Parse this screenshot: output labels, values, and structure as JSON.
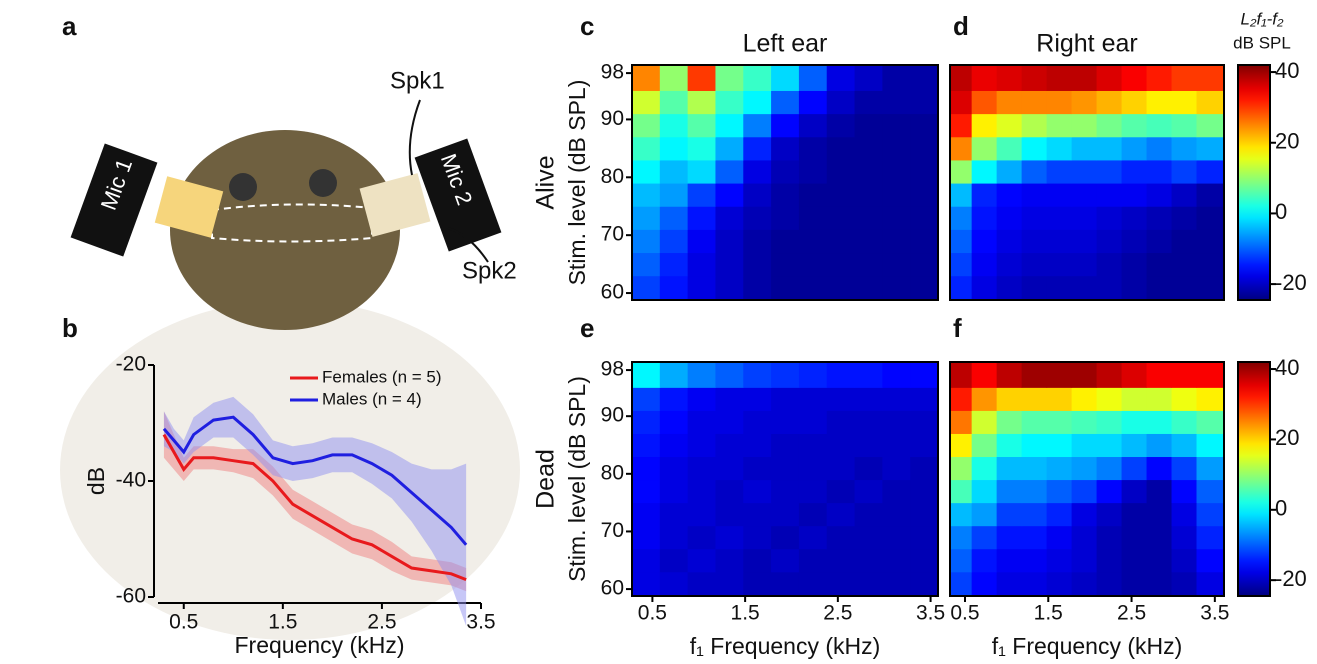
{
  "panels": [
    "a",
    "b",
    "c",
    "d",
    "e",
    "f"
  ],
  "illustration": {
    "mic1": "Mic 1",
    "mic2": "Mic 2",
    "spk1": "Spk1",
    "spk2": "Spk2"
  },
  "chart_data": [
    {
      "type": "line",
      "x_label": "Frequency (kHz)",
      "y_label": "dB",
      "x": [
        0.3,
        0.4,
        0.5,
        0.6,
        0.8,
        1.0,
        1.2,
        1.4,
        1.6,
        1.8,
        2.0,
        2.2,
        2.4,
        2.6,
        2.8,
        3.0,
        3.2,
        3.35
      ],
      "series": [
        {
          "name": "Females (n = 5)",
          "color": "#e8191c",
          "band_color": "#f08080",
          "values": [
            -32,
            -35,
            -38,
            -36,
            -36,
            -36.5,
            -37,
            -40,
            -44,
            -46,
            -48,
            -50,
            -51,
            -53,
            -55,
            -55.5,
            -56,
            -57
          ],
          "errors": [
            4,
            3,
            2,
            2,
            2,
            2,
            2.5,
            2.5,
            2.5,
            2.5,
            2.5,
            2.5,
            2.5,
            2.5,
            2,
            2,
            2,
            2
          ]
        },
        {
          "name": "Males (n = 4)",
          "color": "#1f1fe0",
          "band_color": "#8f8ff0",
          "values": [
            -31,
            -33,
            -35,
            -32,
            -29.5,
            -29,
            -32,
            -36,
            -37,
            -36.5,
            -35.5,
            -35.5,
            -37,
            -39,
            -42,
            -45,
            -48,
            -51
          ],
          "errors": [
            3,
            2,
            2,
            3,
            3,
            3.5,
            3.5,
            3,
            3,
            3,
            3,
            3,
            3.5,
            4,
            5,
            7,
            10,
            14
          ]
        }
      ],
      "xlim": [
        0.24,
        3.5
      ],
      "ylim": [
        -60,
        -20
      ],
      "xticks": [
        0.5,
        1.5,
        2.5,
        3.5
      ],
      "yticks": [
        -60,
        -40,
        -20
      ]
    },
    {
      "type": "heatmap",
      "title": "Left ear",
      "row_label": "Alive",
      "y_label": "Stim. level (dB SPL)",
      "colormap": "jet",
      "clim": [
        -24.5,
        42
      ],
      "x": [
        0.43,
        0.73,
        1.03,
        1.33,
        1.63,
        1.93,
        2.23,
        2.53,
        2.83,
        3.13,
        3.43
      ],
      "y": [
        61,
        65,
        69,
        73,
        77,
        81,
        85,
        89,
        93,
        97
      ],
      "z": [
        [
          -12,
          -15,
          -18,
          -20,
          -22,
          -23,
          -23,
          -23,
          -23,
          -23,
          -23
        ],
        [
          -10,
          -14,
          -18,
          -20,
          -22,
          -23,
          -23,
          -23,
          -23,
          -23,
          -23
        ],
        [
          -8,
          -12,
          -17,
          -20,
          -22,
          -23,
          -23,
          -23,
          -23,
          -23,
          -23
        ],
        [
          -6,
          -10,
          -15,
          -19,
          -21,
          -22,
          -23,
          -23,
          -23,
          -23,
          -23
        ],
        [
          -4,
          -6,
          -12,
          -16,
          -20,
          -22,
          -23,
          -23,
          -23,
          -23,
          -23
        ],
        [
          0,
          -4,
          -2,
          -10,
          -18,
          -21,
          -22,
          -23,
          -23,
          -23,
          -23
        ],
        [
          4,
          0,
          2,
          -5,
          -14,
          -20,
          -22,
          -23,
          -23,
          -23,
          -23
        ],
        [
          8,
          2,
          6,
          0,
          -8,
          -16,
          -20,
          -22,
          -23,
          -23,
          -23
        ],
        [
          14,
          6,
          12,
          4,
          0,
          -10,
          -16,
          -20,
          -22,
          -22,
          -22
        ],
        [
          25,
          10,
          30,
          8,
          4,
          -2,
          -10,
          -18,
          -20,
          -22,
          -22
        ]
      ],
      "xlim": [
        0.28,
        3.58
      ],
      "ylim": [
        58.8,
        99.4
      ],
      "yticks": [
        60,
        70,
        80,
        90,
        98
      ]
    },
    {
      "type": "heatmap",
      "title": "Right ear",
      "colormap": "jet",
      "clim": [
        -24.5,
        42
      ],
      "x": [
        0.43,
        0.73,
        1.03,
        1.33,
        1.63,
        1.93,
        2.23,
        2.53,
        2.83,
        3.13,
        3.43
      ],
      "y": [
        61,
        65,
        69,
        73,
        77,
        81,
        85,
        89,
        93,
        97
      ],
      "z": [
        [
          -14,
          -18,
          -20,
          -21,
          -21,
          -21,
          -21,
          -22,
          -23,
          -23,
          -23
        ],
        [
          -12,
          -17,
          -19,
          -20,
          -20,
          -20,
          -21,
          -22,
          -23,
          -23,
          -23
        ],
        [
          -10,
          -16,
          -18,
          -19,
          -19,
          -19,
          -20,
          -21,
          -22,
          -23,
          -23
        ],
        [
          -8,
          -15,
          -17,
          -18,
          -18,
          -18,
          -19,
          -20,
          -21,
          -22,
          -23
        ],
        [
          -4,
          -14,
          -16,
          -17,
          -17,
          -17,
          -17,
          -17,
          -18,
          -20,
          -22
        ],
        [
          10,
          0,
          -5,
          -10,
          -12,
          -12,
          -12,
          -14,
          -14,
          -12,
          -14
        ],
        [
          25,
          10,
          5,
          0,
          -2,
          -4,
          -4,
          -6,
          -8,
          -6,
          -5
        ],
        [
          32,
          18,
          15,
          12,
          10,
          10,
          8,
          6,
          5,
          6,
          8
        ],
        [
          36,
          28,
          25,
          25,
          25,
          24,
          22,
          20,
          18,
          18,
          20
        ],
        [
          38,
          35,
          36,
          37,
          38,
          38,
          36,
          34,
          32,
          30,
          30
        ]
      ],
      "xlim": [
        0.32,
        3.61
      ],
      "ylim": [
        58.8,
        99.4
      ],
      "colorbar_title": "L₂f₁-f₂",
      "colorbar_unit": "dB SPL",
      "colorbar_ticks": [
        -20,
        0,
        20,
        40
      ]
    },
    {
      "type": "heatmap",
      "row_label": "Dead",
      "y_label": "Stim. level (dB SPL)",
      "x_label": "f₁ Frequency (kHz)",
      "colormap": "jet",
      "clim": [
        -24.5,
        42
      ],
      "x": [
        0.43,
        0.73,
        1.03,
        1.33,
        1.63,
        1.93,
        2.23,
        2.53,
        2.83,
        3.13,
        3.43
      ],
      "y": [
        61,
        65,
        69,
        73,
        77,
        81,
        85,
        89,
        93,
        97
      ],
      "z": [
        [
          -18,
          -19,
          -20,
          -20,
          -21,
          -21,
          -21,
          -21,
          -21,
          -21,
          -21
        ],
        [
          -18,
          -20,
          -19,
          -20,
          -21,
          -20,
          -21,
          -21,
          -21,
          -21,
          -21
        ],
        [
          -17,
          -19,
          -20,
          -19,
          -20,
          -21,
          -20,
          -21,
          -21,
          -21,
          -21
        ],
        [
          -17,
          -19,
          -19,
          -20,
          -20,
          -20,
          -21,
          -20,
          -21,
          -21,
          -21
        ],
        [
          -16,
          -18,
          -19,
          -20,
          -19,
          -20,
          -20,
          -21,
          -20,
          -21,
          -21
        ],
        [
          -16,
          -18,
          -19,
          -19,
          -20,
          -20,
          -20,
          -20,
          -21,
          -20,
          -21
        ],
        [
          -15,
          -17,
          -18,
          -19,
          -19,
          -20,
          -20,
          -20,
          -20,
          -20,
          -20
        ],
        [
          -14,
          -16,
          -18,
          -18,
          -19,
          -19,
          -19,
          -20,
          -20,
          -20,
          -20
        ],
        [
          -12,
          -15,
          -17,
          -18,
          -18,
          -19,
          -19,
          -19,
          -19,
          -19,
          -19
        ],
        [
          0,
          -5,
          -8,
          -10,
          -12,
          -13,
          -14,
          -15,
          -15,
          -16,
          -16
        ]
      ],
      "xlim": [
        0.28,
        3.58
      ],
      "ylim": [
        58.8,
        99.4
      ],
      "xticks": [
        0.5,
        1.5,
        2.5,
        3.5
      ],
      "yticks": [
        60,
        70,
        80,
        90,
        98
      ]
    },
    {
      "type": "heatmap",
      "x_label": "f₁ Frequency (kHz)",
      "colormap": "jet",
      "clim": [
        -24.5,
        42
      ],
      "x": [
        0.43,
        0.73,
        1.03,
        1.33,
        1.63,
        1.93,
        2.23,
        2.53,
        2.83,
        3.13,
        3.43
      ],
      "y": [
        61,
        65,
        69,
        73,
        77,
        81,
        85,
        89,
        93,
        97
      ],
      "z": [
        [
          -12,
          -16,
          -18,
          -18,
          -19,
          -20,
          -21,
          -22,
          -22,
          -21,
          -18
        ],
        [
          -10,
          -15,
          -17,
          -17,
          -18,
          -19,
          -21,
          -22,
          -22,
          -20,
          -16
        ],
        [
          -8,
          -12,
          -15,
          -15,
          -17,
          -19,
          -21,
          -22,
          -22,
          -19,
          -14
        ],
        [
          -4,
          -6,
          -12,
          -12,
          -14,
          -18,
          -20,
          -22,
          -22,
          -18,
          -12
        ],
        [
          5,
          -2,
          -8,
          -8,
          -10,
          -12,
          -16,
          -20,
          -22,
          -16,
          -10
        ],
        [
          10,
          2,
          -4,
          -4,
          -5,
          -6,
          -8,
          -12,
          -16,
          -12,
          -6
        ],
        [
          18,
          8,
          2,
          0,
          0,
          -2,
          -2,
          -4,
          -6,
          -4,
          0
        ],
        [
          26,
          14,
          8,
          6,
          6,
          5,
          4,
          2,
          2,
          4,
          6
        ],
        [
          32,
          24,
          20,
          20,
          20,
          18,
          16,
          14,
          14,
          16,
          18
        ],
        [
          38,
          34,
          38,
          40,
          40,
          40,
          38,
          36,
          34,
          34,
          34
        ]
      ],
      "xlim": [
        0.32,
        3.61
      ],
      "ylim": [
        58.8,
        99.4
      ],
      "xticks": [
        0.5,
        1.5,
        2.5,
        3.5
      ],
      "colorbar_ticks": [
        -20,
        0,
        20,
        40
      ]
    }
  ]
}
